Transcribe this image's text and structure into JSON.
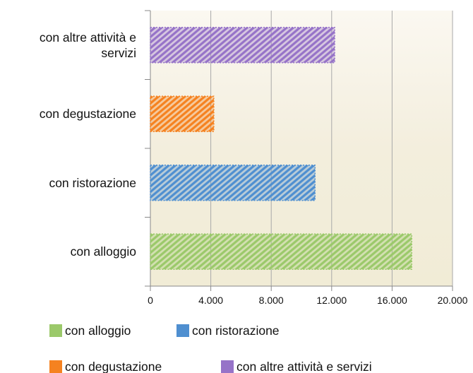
{
  "chart_data": {
    "type": "bar",
    "orientation": "horizontal",
    "categories": [
      "con alloggio",
      "con ristorazione",
      "con degustazione",
      "con altre attività e servizi"
    ],
    "values": [
      17300,
      10900,
      4200,
      12200
    ],
    "colors": [
      "#9bc96a",
      "#4f8fd0",
      "#f58220",
      "#9673c8"
    ],
    "xlim": [
      0,
      20000
    ],
    "xticks": [
      0,
      {
        "value": 4000,
        "label": "4.000"
      },
      {
        "value": 8000,
        "label": "8.000"
      },
      {
        "value": 12000,
        "label": "12.000"
      },
      {
        "value": 16000,
        "label": "16.000"
      },
      {
        "value": 20000,
        "label": "20.000"
      }
    ],
    "grid": true
  }
}
